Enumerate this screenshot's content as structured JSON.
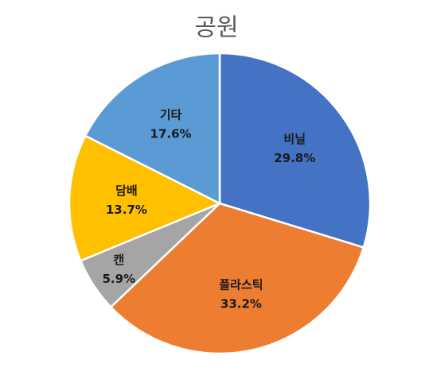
{
  "chart_data": {
    "type": "pie",
    "title": "공원",
    "categories": [
      "비닐",
      "플라스틱",
      "캔",
      "담배",
      "기타"
    ],
    "values": [
      29.8,
      33.2,
      5.9,
      13.7,
      17.6
    ],
    "value_labels": [
      "29.8%",
      "33.2%",
      "5.9%",
      "13.7%",
      "17.6%"
    ],
    "colors": [
      "#4472c4",
      "#ed7d31",
      "#a5a5a5",
      "#ffc000",
      "#5b9bd5"
    ]
  }
}
